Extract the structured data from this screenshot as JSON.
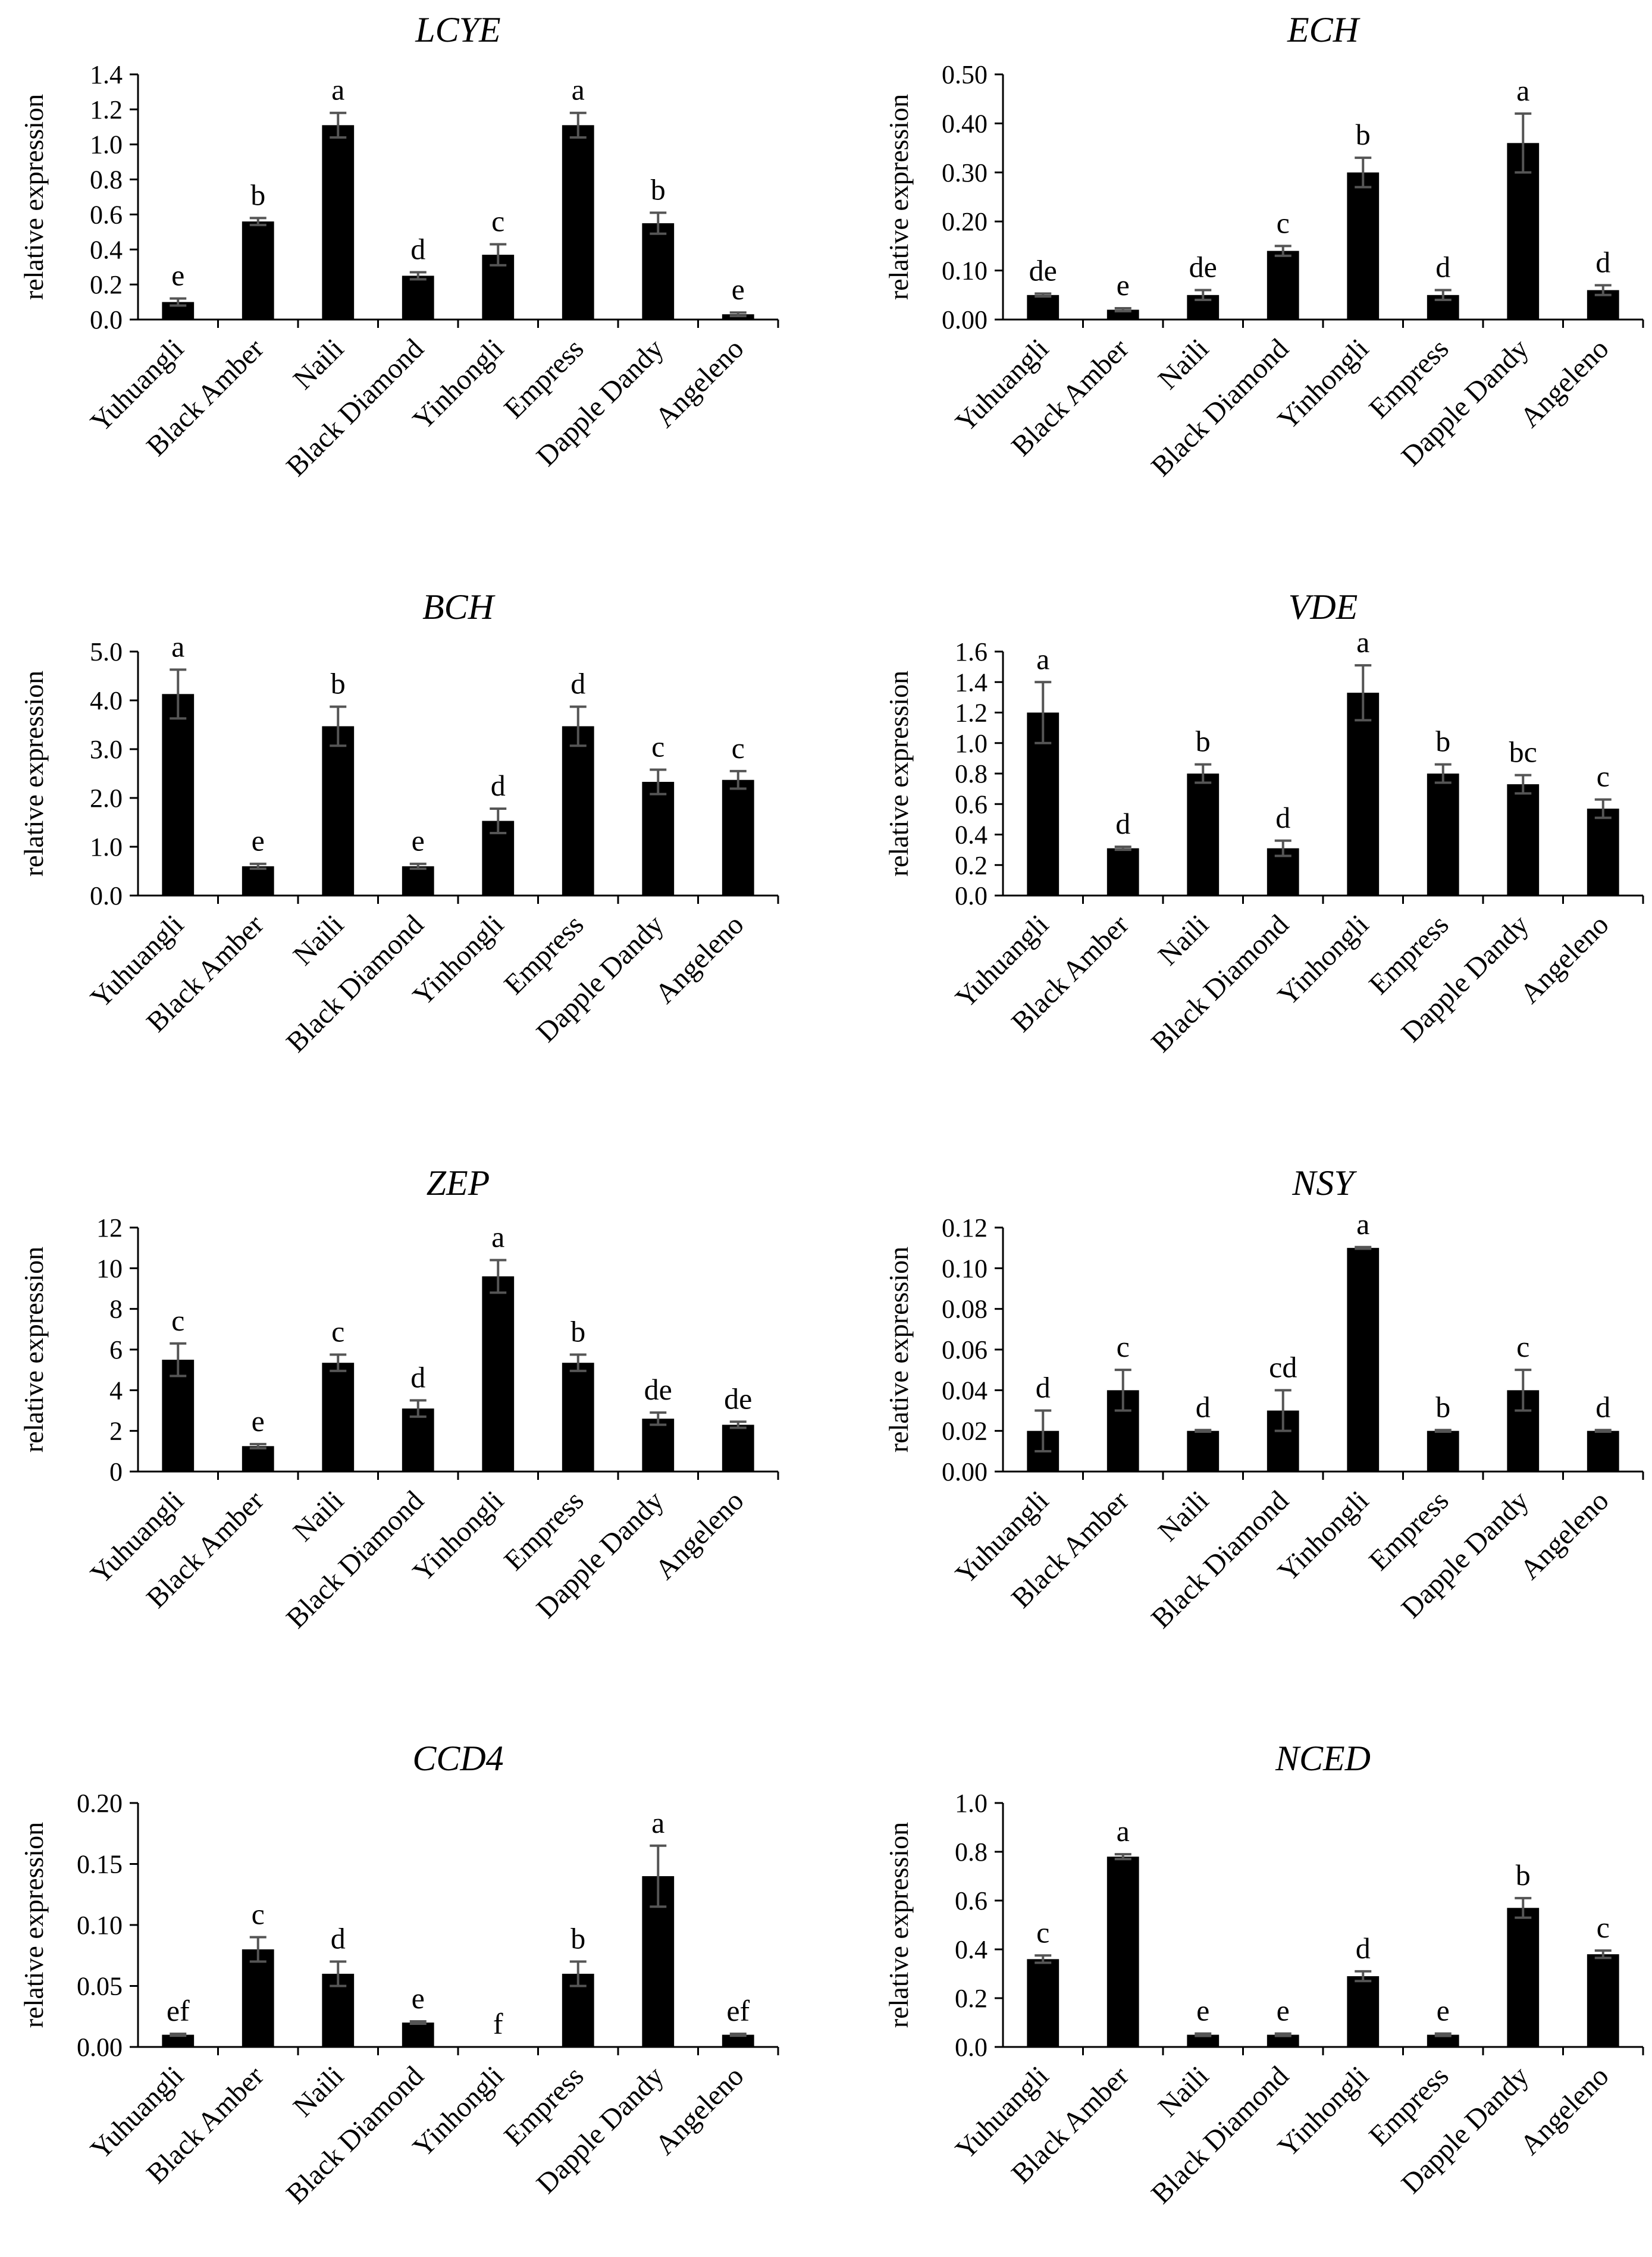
{
  "figure": {
    "background": "#ffffff",
    "bar_color": "#000000",
    "axis_color": "#000000",
    "error_color": "#555555"
  },
  "chart_data": [
    {
      "type": "bar",
      "title": "LCYE",
      "ylabel": "relative expression",
      "categories": [
        "Yuhuangli",
        "Black Amber",
        "Naili",
        "Black Diamond",
        "Yinhongli",
        "Empress",
        "Dapple Dandy",
        "Angeleno"
      ],
      "values": [
        0.1,
        0.56,
        1.11,
        0.25,
        0.37,
        1.11,
        0.55,
        0.03
      ],
      "errors": [
        0.02,
        0.02,
        0.07,
        0.02,
        0.06,
        0.07,
        0.06,
        0.01
      ],
      "letters": [
        "e",
        "b",
        "a",
        "d",
        "c",
        "a",
        "b",
        "e"
      ],
      "ylim": [
        0,
        1.4
      ],
      "yticks": [
        "0.0",
        "0.2",
        "0.4",
        "0.6",
        "0.8",
        "1.0",
        "1.2",
        "1.4"
      ]
    },
    {
      "type": "bar",
      "title": "ECH",
      "ylabel": "relative expression",
      "categories": [
        "Yuhuangli",
        "Black Amber",
        "Naili",
        "Black Diamond",
        "Yinhongli",
        "Empress",
        "Dapple Dandy",
        "Angeleno"
      ],
      "values": [
        0.05,
        0.02,
        0.05,
        0.14,
        0.3,
        0.05,
        0.36,
        0.06
      ],
      "errors": [
        0.003,
        0.003,
        0.01,
        0.01,
        0.03,
        0.01,
        0.06,
        0.01
      ],
      "letters": [
        "de",
        "e",
        "de",
        "c",
        "b",
        "d",
        "a",
        "d"
      ],
      "ylim": [
        0,
        0.5
      ],
      "yticks": [
        "0.00",
        "0.10",
        "0.20",
        "0.30",
        "0.40",
        "0.50"
      ]
    },
    {
      "type": "bar",
      "title": "BCH",
      "ylabel": "relative expression",
      "categories": [
        "Yuhuangli",
        "Black Amber",
        "Naili",
        "Black Diamond",
        "Yinhongli",
        "Empress",
        "Dapple Dandy",
        "Angeleno"
      ],
      "values": [
        4.13,
        0.6,
        3.47,
        0.6,
        1.53,
        3.47,
        2.33,
        2.37
      ],
      "errors": [
        0.5,
        0.05,
        0.4,
        0.05,
        0.25,
        0.4,
        0.25,
        0.18
      ],
      "letters": [
        "a",
        "e",
        "b",
        "e",
        "d",
        "d",
        "c",
        "c"
      ],
      "ylim": [
        0,
        5
      ],
      "yticks": [
        "0.0",
        "1.0",
        "2.0",
        "3.0",
        "4.0",
        "5.0"
      ]
    },
    {
      "type": "bar",
      "title": "VDE",
      "ylabel": "relative expression",
      "categories": [
        "Yuhuangli",
        "Black Amber",
        "Naili",
        "Black Diamond",
        "Yinhongli",
        "Empress",
        "Dapple Dandy",
        "Angeleno"
      ],
      "values": [
        1.2,
        0.31,
        0.8,
        0.31,
        1.33,
        0.8,
        0.73,
        0.57
      ],
      "errors": [
        0.2,
        0.01,
        0.06,
        0.05,
        0.18,
        0.06,
        0.06,
        0.06
      ],
      "letters": [
        "a",
        "d",
        "b",
        "d",
        "a",
        "b",
        "bc",
        "c"
      ],
      "ylim": [
        0,
        1.6
      ],
      "yticks": [
        "0.0",
        "0.2",
        "0.4",
        "0.6",
        "0.8",
        "1.0",
        "1.2",
        "1.4",
        "1.6"
      ]
    },
    {
      "type": "bar",
      "title": "ZEP",
      "ylabel": "relative expression",
      "categories": [
        "Yuhuangli",
        "Black Amber",
        "Naili",
        "Black Diamond",
        "Yinhongli",
        "Empress",
        "Dapple Dandy",
        "Angeleno"
      ],
      "values": [
        5.5,
        1.25,
        5.35,
        3.1,
        9.6,
        5.35,
        2.6,
        2.3
      ],
      "errors": [
        0.8,
        0.1,
        0.4,
        0.4,
        0.8,
        0.4,
        0.3,
        0.15
      ],
      "letters": [
        "c",
        "e",
        "c",
        "d",
        "a",
        "b",
        "de",
        "de"
      ],
      "ylim": [
        0,
        12
      ],
      "yticks": [
        "0",
        "2",
        "4",
        "6",
        "8",
        "10",
        "12"
      ]
    },
    {
      "type": "bar",
      "title": "NSY",
      "ylabel": "relative expression",
      "categories": [
        "Yuhuangli",
        "Black Amber",
        "Naili",
        "Black Diamond",
        "Yinhongli",
        "Empress",
        "Dapple Dandy",
        "Angeleno"
      ],
      "values": [
        0.02,
        0.04,
        0.02,
        0.03,
        0.11,
        0.02,
        0.04,
        0.02
      ],
      "errors": [
        0.01,
        0.01,
        0.0004,
        0.01,
        0.0004,
        0.0004,
        0.01,
        0.0004
      ],
      "letters": [
        "d",
        "c",
        "d",
        "cd",
        "a",
        "b",
        "c",
        "d"
      ],
      "ylim": [
        0,
        0.12
      ],
      "yticks": [
        "0.00",
        "0.02",
        "0.04",
        "0.06",
        "0.08",
        "0.10",
        "0.12"
      ]
    },
    {
      "type": "bar",
      "title": "CCD4",
      "ylabel": "relative expression",
      "categories": [
        "Yuhuangli",
        "Black Amber",
        "Naili",
        "Black Diamond",
        "Yinhongli",
        "Empress",
        "Dapple Dandy",
        "Angeleno"
      ],
      "values": [
        0.01,
        0.08,
        0.06,
        0.02,
        0.0,
        0.06,
        0.14,
        0.01
      ],
      "errors": [
        0.0008,
        0.01,
        0.01,
        0.001,
        0.0,
        0.01,
        0.025,
        0.0008
      ],
      "letters": [
        "ef",
        "c",
        "d",
        "e",
        "f",
        "b",
        "a",
        "ef"
      ],
      "ylim": [
        0,
        0.2
      ],
      "yticks": [
        "0.00",
        "0.05",
        "0.10",
        "0.15",
        "0.20"
      ]
    },
    {
      "type": "bar",
      "title": "NCED",
      "ylabel": "relative expression",
      "categories": [
        "Yuhuangli",
        "Black Amber",
        "Naili",
        "Black Diamond",
        "Yinhongli",
        "Empress",
        "Dapple Dandy",
        "Angeleno"
      ],
      "values": [
        0.36,
        0.78,
        0.05,
        0.05,
        0.29,
        0.05,
        0.57,
        0.38
      ],
      "errors": [
        0.015,
        0.01,
        0.005,
        0.005,
        0.02,
        0.005,
        0.04,
        0.015
      ],
      "letters": [
        "c",
        "a",
        "e",
        "e",
        "d",
        "e",
        "b",
        "c"
      ],
      "ylim": [
        0,
        1.0
      ],
      "yticks": [
        "0.0",
        "0.2",
        "0.4",
        "0.6",
        "0.8",
        "1.0"
      ]
    }
  ]
}
